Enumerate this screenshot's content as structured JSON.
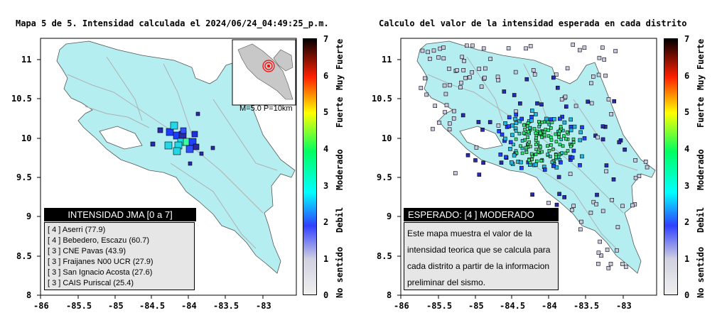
{
  "left": {
    "title": "Mapa 5 de 5. Intensidad calculada el 2024/06/24_04:49:25_p.m.",
    "inset_label": "M=5.0 P=10km",
    "legend_title": "INTENSIDAD JMA [0 a 7]",
    "stations": [
      "[ 4 ]  Aserri  (77.9)",
      "[ 4 ]  Bebedero, Escazu  (60.7)",
      "[ 3 ]  CNE Pavas  (43.9)",
      "[ 3 ]  Fraijanes N00 UCR  (27.9)",
      "[ 3 ]  San Ignacio Acosta  (27.6)",
      "[ 3 ]  CAIS Puriscal  (25.4)"
    ]
  },
  "right": {
    "title": "Calculo del valor de la intensidad esperada en cada distrito",
    "info_title": "ESPERADO: [4 ] MODERADO",
    "info_text": "Este mapa muestra el valor de la intensidad teorica que se calcula para cada distrito a partir de la informacion preliminar del sismo."
  },
  "axes": {
    "x_ticks": [
      "-86",
      "-85.5",
      "-85",
      "-84.5",
      "-84",
      "-83.5",
      "-83"
    ],
    "y_ticks": [
      "11",
      "10.5",
      "10",
      "9.5",
      "9",
      "8.5",
      "8"
    ]
  },
  "colorbar": {
    "ticks": [
      "0",
      "1",
      "2",
      "3",
      "4",
      "5",
      "6",
      "7"
    ],
    "labels": [
      "No sentido",
      "Debil",
      "Moderado",
      "Fuerte",
      "Muy Fuerte"
    ]
  },
  "colors": {
    "land": "#b4eef0",
    "water": "#ffffff",
    "roads": "#b0b0b0"
  }
}
